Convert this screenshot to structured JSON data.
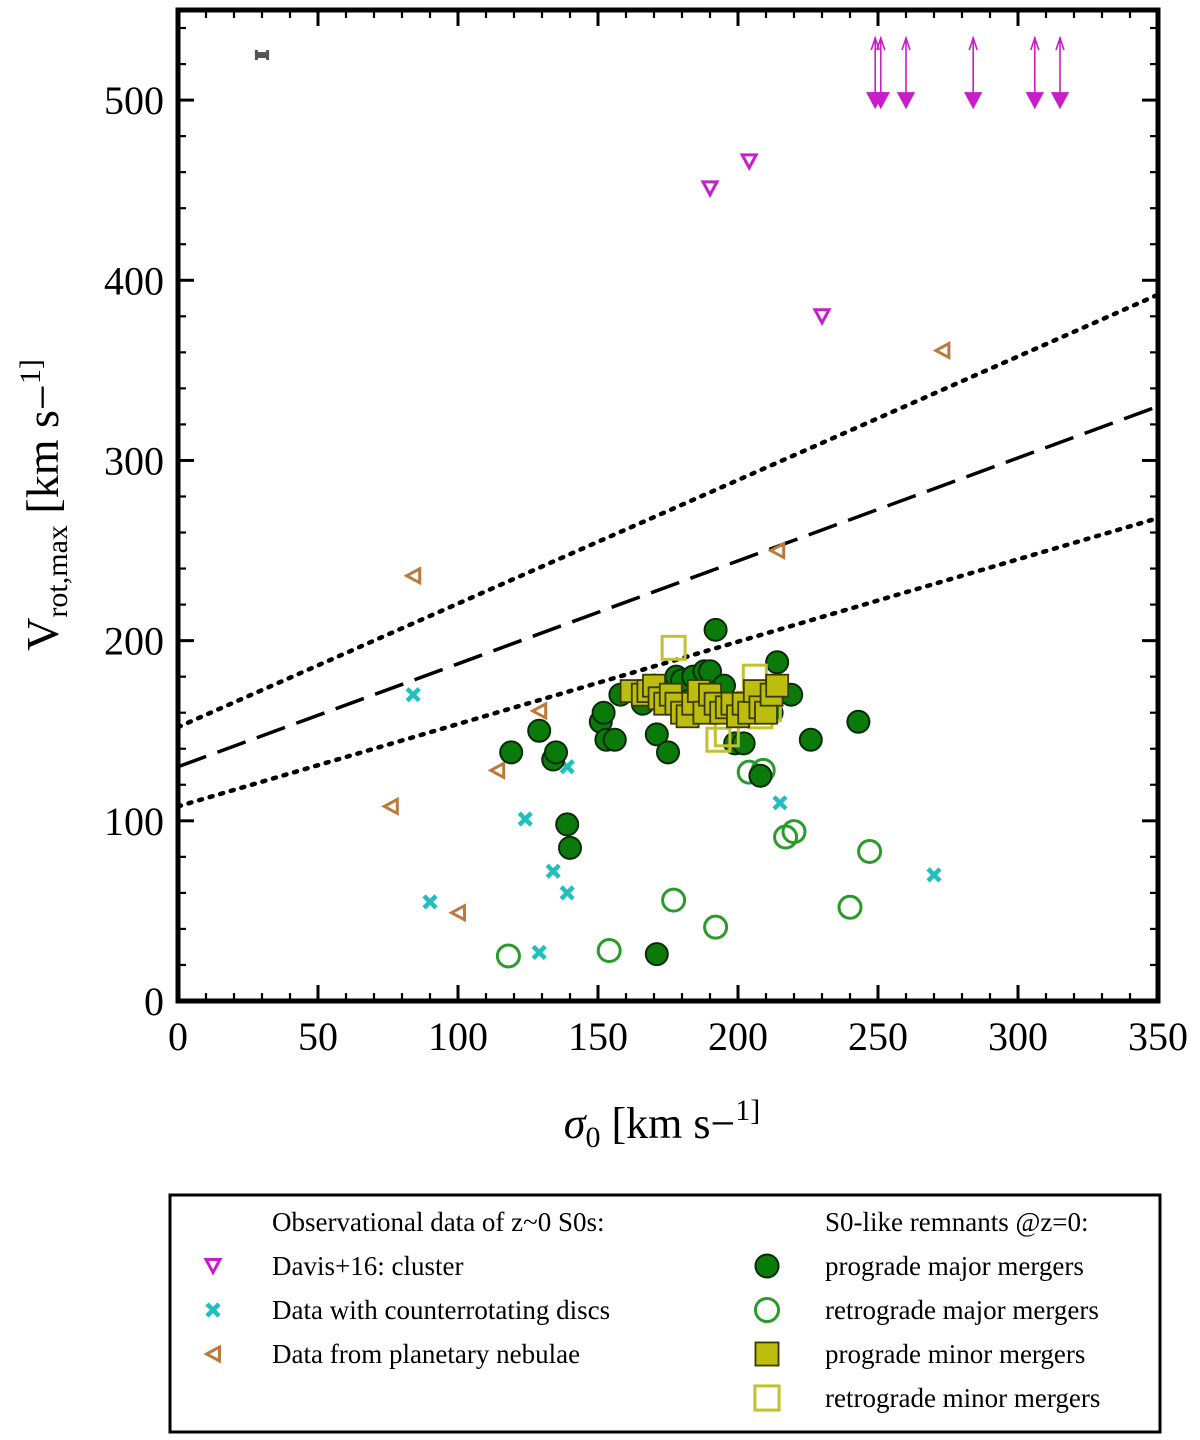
{
  "chart_data": {
    "type": "scatter",
    "xlabel": "σ0 [km s−1]",
    "ylabel": "Vrot,max [km s−1]",
    "xlim": [
      0,
      350
    ],
    "ylim": [
      0,
      550
    ],
    "xticks": [
      0,
      50,
      100,
      150,
      200,
      250,
      300,
      350
    ],
    "yticks": [
      0,
      100,
      200,
      300,
      400,
      500
    ],
    "legend": {
      "placement": "bottom",
      "left_heading": "Observational data of z~0 S0s:",
      "right_heading": "S0-like remnants @z=0:"
    },
    "lines": [
      {
        "name": "relation",
        "style": "dashed",
        "x": [
          0,
          350
        ],
        "y": [
          130,
          330
        ]
      },
      {
        "name": "upper bound",
        "style": "dotted",
        "x": [
          0,
          350
        ],
        "y": [
          152,
          392
        ]
      },
      {
        "name": "lower bound",
        "style": "dotted",
        "x": [
          0,
          350
        ],
        "y": [
          108,
          268
        ]
      }
    ],
    "error_bar": {
      "x": 30,
      "y": 525,
      "xerr": 2
    },
    "series": [
      {
        "name": "Davis+16: cluster",
        "marker": "triangle-down",
        "color": "#c81dc8",
        "points": [
          [
            190,
            451
          ],
          [
            204,
            466
          ],
          [
            230,
            380
          ]
        ],
        "lower_limits": [
          [
            249,
            500
          ],
          [
            251,
            500
          ],
          [
            260,
            500
          ],
          [
            284,
            500
          ],
          [
            306,
            500
          ],
          [
            315,
            500
          ]
        ]
      },
      {
        "name": "Data with counterrotating discs",
        "marker": "x",
        "color": "#23bfbf",
        "points": [
          [
            84,
            170
          ],
          [
            124,
            101
          ],
          [
            139,
            130
          ],
          [
            134,
            72
          ],
          [
            139,
            60
          ],
          [
            90,
            55
          ],
          [
            129,
            27
          ],
          [
            215,
            110
          ],
          [
            270,
            70
          ]
        ]
      },
      {
        "name": "Data from planetary nebulae",
        "marker": "triangle-left",
        "color": "#bb7a3e",
        "points": [
          [
            84,
            236
          ],
          [
            129,
            161
          ],
          [
            114,
            128
          ],
          [
            76,
            108
          ],
          [
            100,
            49
          ],
          [
            214,
            250
          ],
          [
            273,
            361
          ]
        ]
      },
      {
        "name": "prograde major mergers",
        "marker": "circle-filled",
        "color": "#0a7a0a",
        "points": [
          [
            119,
            138
          ],
          [
            129,
            150
          ],
          [
            134,
            134
          ],
          [
            135,
            138
          ],
          [
            139,
            98
          ],
          [
            140,
            85
          ],
          [
            151,
            155
          ],
          [
            152,
            160
          ],
          [
            153,
            145
          ],
          [
            156,
            145
          ],
          [
            158,
            170
          ],
          [
            166,
            165
          ],
          [
            170,
            175
          ],
          [
            171,
            148
          ],
          [
            175,
            138
          ],
          [
            178,
            180
          ],
          [
            180,
            178
          ],
          [
            184,
            180
          ],
          [
            186,
            172
          ],
          [
            188,
            183
          ],
          [
            190,
            183
          ],
          [
            192,
            206
          ],
          [
            195,
            175
          ],
          [
            197,
            160
          ],
          [
            199,
            143
          ],
          [
            202,
            143
          ],
          [
            205,
            162
          ],
          [
            208,
            125
          ],
          [
            212,
            160
          ],
          [
            214,
            188
          ],
          [
            219,
            170
          ],
          [
            226,
            145
          ],
          [
            243,
            155
          ],
          [
            171,
            26
          ]
        ]
      },
      {
        "name": "retrograde major mergers",
        "marker": "circle-open",
        "color": "#2a9a2a",
        "points": [
          [
            118,
            25
          ],
          [
            154,
            28
          ],
          [
            177,
            56
          ],
          [
            192,
            41
          ],
          [
            204,
            127
          ],
          [
            209,
            128
          ],
          [
            217,
            91
          ],
          [
            220,
            94
          ],
          [
            240,
            52
          ],
          [
            247,
            83
          ]
        ]
      },
      {
        "name": "prograde minor mergers",
        "marker": "square-filled",
        "color": "#bdbd10",
        "points": [
          [
            162,
            172
          ],
          [
            166,
            170
          ],
          [
            168,
            172
          ],
          [
            170,
            175
          ],
          [
            172,
            168
          ],
          [
            174,
            165
          ],
          [
            176,
            170
          ],
          [
            178,
            165
          ],
          [
            180,
            160
          ],
          [
            182,
            158
          ],
          [
            184,
            165
          ],
          [
            186,
            172
          ],
          [
            188,
            160
          ],
          [
            190,
            170
          ],
          [
            192,
            165
          ],
          [
            194,
            160
          ],
          [
            196,
            163
          ],
          [
            198,
            165
          ],
          [
            200,
            158
          ],
          [
            202,
            165
          ],
          [
            204,
            160
          ],
          [
            206,
            172
          ],
          [
            208,
            163
          ],
          [
            210,
            160
          ],
          [
            212,
            170
          ],
          [
            214,
            175
          ]
        ]
      },
      {
        "name": "retrograde minor mergers",
        "marker": "square-open",
        "color": "#c2c230",
        "points": [
          [
            177,
            196
          ],
          [
            193,
            145
          ],
          [
            196,
            148
          ],
          [
            204,
            165
          ],
          [
            206,
            180
          ],
          [
            208,
            158
          ],
          [
            211,
            162
          ]
        ]
      }
    ]
  }
}
